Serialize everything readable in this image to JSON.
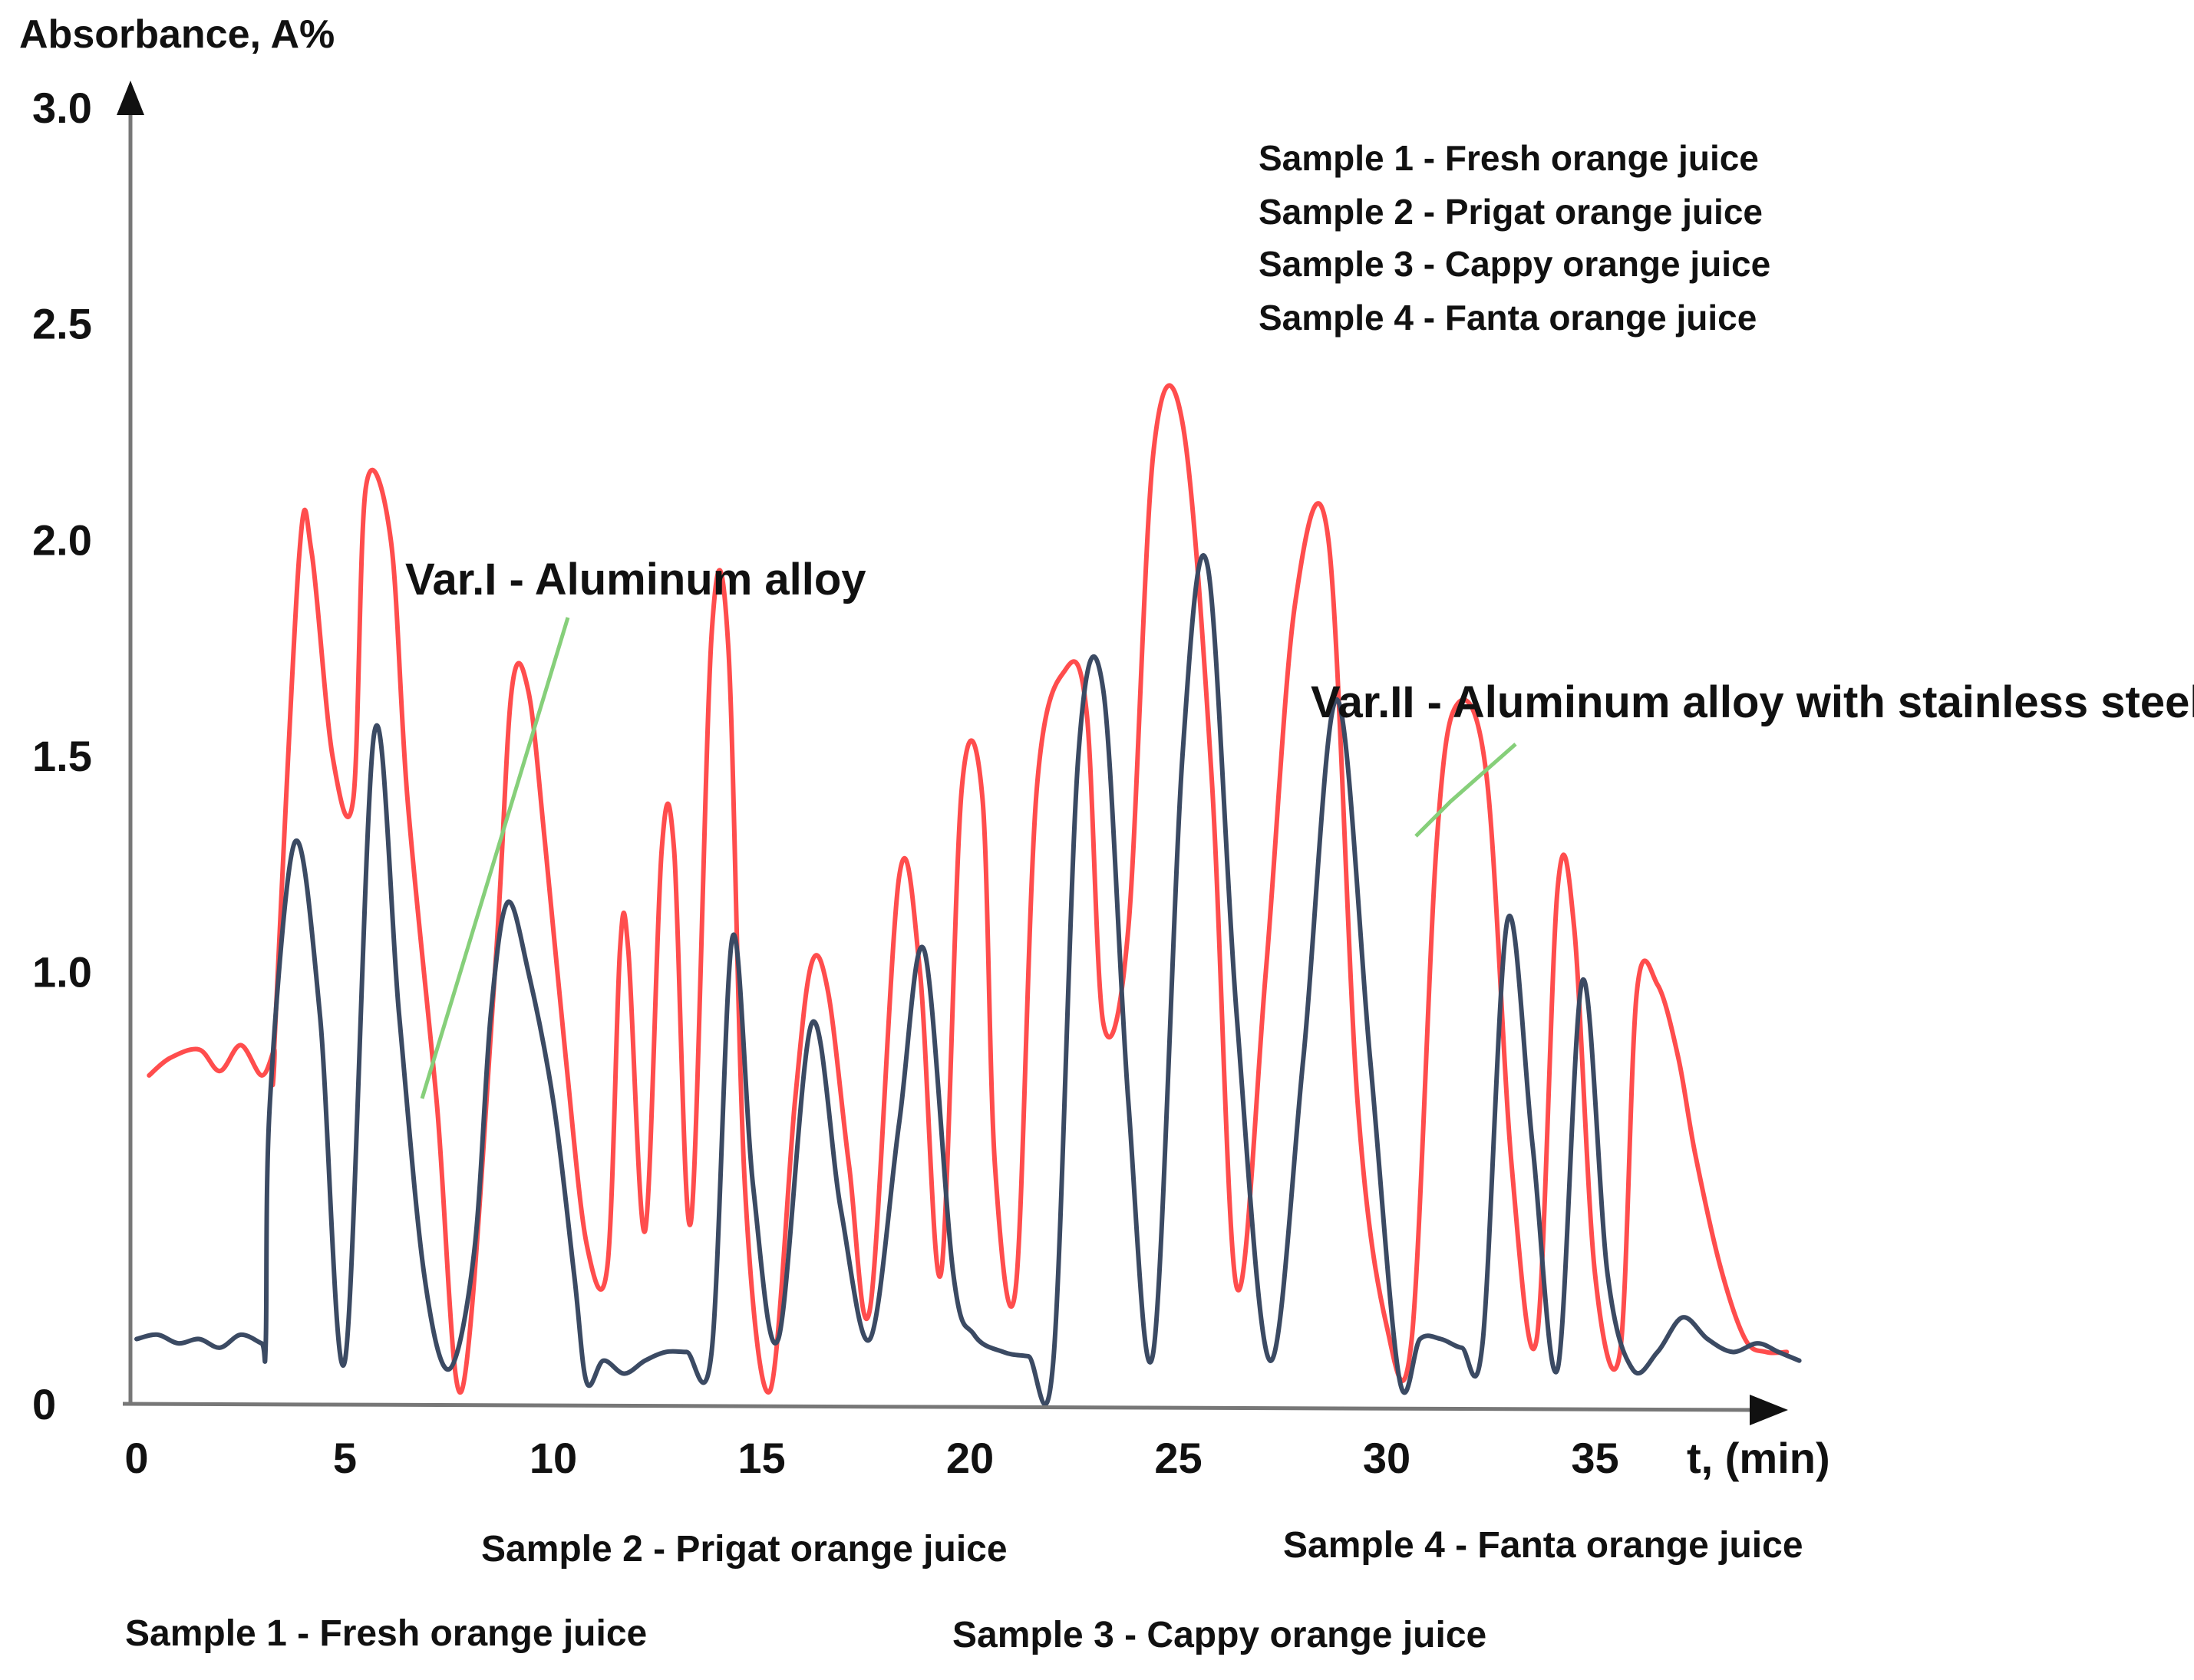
{
  "chart_data": {
    "type": "line",
    "ylabel": "Absorbance, A%",
    "xlabel": "t, (min)",
    "xlim": [
      0,
      40
    ],
    "ylim": [
      0,
      3.0
    ],
    "x_ticks": [
      "0",
      "5",
      "10",
      "15",
      "20",
      "25",
      "30",
      "35"
    ],
    "y_ticks": [
      "0",
      "1.0",
      "1.5",
      "2.0",
      "2.5",
      "3.0"
    ],
    "x_tick_values": [
      0,
      5,
      10,
      15,
      20,
      25,
      30,
      35
    ],
    "y_tick_values": [
      0,
      1.0,
      1.5,
      2.0,
      2.5,
      3.0
    ],
    "legend_lines": [
      "Sample 1 - Fresh orange juice",
      "Sample 2 - Prigat orange juice",
      "Sample 3 - Cappy orange juice",
      "Sample 4 - Fanta orange juice"
    ],
    "annotations": [
      {
        "text": "Var.I - Aluminum alloy",
        "points_to": [
          8.9,
          1.1
        ]
      },
      {
        "text": "Var.II - Aluminum alloy  with stainless steel",
        "points_to": [
          32.5,
          1.6
        ]
      }
    ],
    "sample_labels": {
      "sample1": "Sample 1 - Fresh orange juice",
      "sample2": "Sample 2 - Prigat orange juice",
      "sample3": "Sample 3 - Cappy orange juice",
      "sample4": "Sample 4 - Fanta orange juice"
    },
    "series": [
      {
        "color": "#ff4d4d",
        "x": [
          0.3,
          0.8,
          1.5,
          2.0,
          2.5,
          3.0,
          3.3,
          3.3,
          3.9,
          4.2,
          4.7,
          5.2,
          5.5,
          6.1,
          6.5,
          7.2,
          7.8,
          8.6,
          9.0,
          9.4,
          9.8,
          10.3,
          10.8,
          11.3,
          11.6,
          11.8,
          12.2,
          12.6,
          12.9,
          13.3,
          13.8,
          14.2,
          14.6,
          15.2,
          15.8,
          16.2,
          16.6,
          17.1,
          17.6,
          18.3,
          18.8,
          19.3,
          19.8,
          20.3,
          20.6,
          21.1,
          21.6,
          22.3,
          22.8,
          23.2,
          23.8,
          24.4,
          25.1,
          25.8,
          26.4,
          27.1,
          27.8,
          28.6,
          29.3,
          30.0,
          30.6,
          31.2,
          31.7,
          32.4,
          33.0,
          33.6,
          34.1,
          34.5,
          35.0,
          35.6,
          36.0,
          36.5,
          37.0,
          37.4,
          38.0,
          38.6,
          39.1,
          39.6
        ],
        "y": [
          0.76,
          0.8,
          0.82,
          0.77,
          0.83,
          0.76,
          0.82,
          0.82,
          1.96,
          1.97,
          1.5,
          1.4,
          2.12,
          2.0,
          1.4,
          0.7,
          0.03,
          1.0,
          1.65,
          1.65,
          1.3,
          0.8,
          0.37,
          0.32,
          1.05,
          1.05,
          0.4,
          1.28,
          1.28,
          0.42,
          1.78,
          1.75,
          0.5,
          0.03,
          0.7,
          1.02,
          0.95,
          0.55,
          0.22,
          1.22,
          1.0,
          0.3,
          1.42,
          1.4,
          0.55,
          0.27,
          1.42,
          1.7,
          1.6,
          0.88,
          1.1,
          2.2,
          2.27,
          1.45,
          0.27,
          1.0,
          1.85,
          2.0,
          0.7,
          0.18,
          0.15,
          1.3,
          1.62,
          1.45,
          0.55,
          0.15,
          1.19,
          1.1,
          0.3,
          0.12,
          0.95,
          0.97,
          0.8,
          0.58,
          0.32,
          0.15,
          0.12,
          0.12
        ]
      },
      {
        "color": "#3b4a63",
        "x": [
          0.0,
          0.5,
          1.0,
          1.5,
          2.0,
          2.5,
          3.0,
          3.1,
          3.2,
          3.8,
          4.4,
          5.0,
          5.7,
          6.3,
          6.9,
          7.5,
          8.1,
          8.5,
          8.9,
          9.4,
          10.0,
          10.5,
          10.8,
          11.2,
          11.7,
          12.2,
          12.7,
          13.2,
          13.8,
          14.3,
          14.8,
          15.4,
          16.2,
          16.9,
          17.6,
          18.3,
          18.9,
          19.6,
          20.1,
          20.8,
          21.4,
          22.0,
          22.6,
          23.2,
          23.8,
          24.4,
          25.1,
          25.7,
          26.4,
          27.2,
          28.0,
          28.8,
          29.6,
          30.3,
          30.8,
          31.3,
          31.8,
          32.3,
          32.9,
          33.5,
          34.1,
          34.7,
          35.3,
          35.9,
          36.5,
          37.1,
          37.7,
          38.3,
          38.9,
          39.4,
          39.9
        ],
        "y": [
          0.15,
          0.16,
          0.14,
          0.15,
          0.13,
          0.16,
          0.14,
          0.14,
          0.7,
          1.3,
          0.9,
          0.1,
          1.55,
          0.9,
          0.3,
          0.08,
          0.35,
          0.9,
          1.16,
          1.0,
          0.7,
          0.3,
          0.05,
          0.1,
          0.07,
          0.1,
          0.12,
          0.12,
          0.12,
          1.08,
          0.5,
          0.15,
          0.88,
          0.45,
          0.15,
          0.65,
          1.05,
          0.3,
          0.16,
          0.12,
          0.11,
          0.1,
          1.5,
          1.65,
          0.7,
          0.12,
          1.5,
          1.94,
          0.9,
          0.1,
          0.8,
          1.63,
          0.8,
          0.06,
          0.15,
          0.15,
          0.13,
          0.14,
          1.12,
          0.6,
          0.08,
          0.98,
          0.3,
          0.08,
          0.12,
          0.2,
          0.15,
          0.12,
          0.14,
          0.12,
          0.1
        ]
      }
    ]
  }
}
